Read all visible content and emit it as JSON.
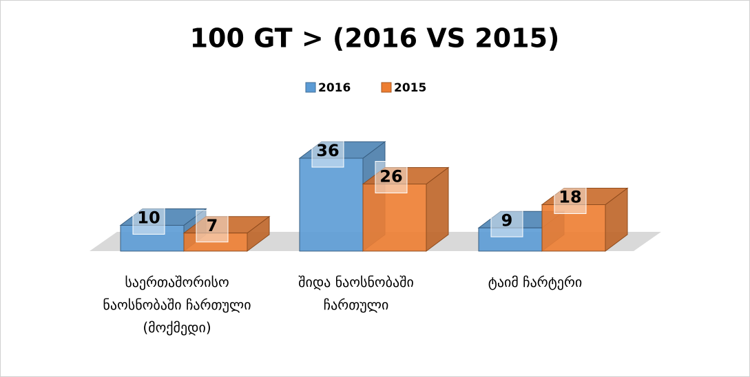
{
  "chart_data": {
    "type": "bar3d",
    "title": "100 GT > (2016 VS 2015)",
    "categories": [
      "საერთაშორისო ნაოსნობაში ჩართული (მოქმედი)",
      "შიდა ნაოსნობაში ჩართული",
      "ტაიმ ჩარტერი"
    ],
    "series": [
      {
        "name": "2016",
        "color": "#5b9bd5",
        "values": [
          10,
          36,
          9
        ]
      },
      {
        "name": "2015",
        "color": "#ed7d31",
        "values": [
          7,
          26,
          18
        ]
      }
    ]
  }
}
